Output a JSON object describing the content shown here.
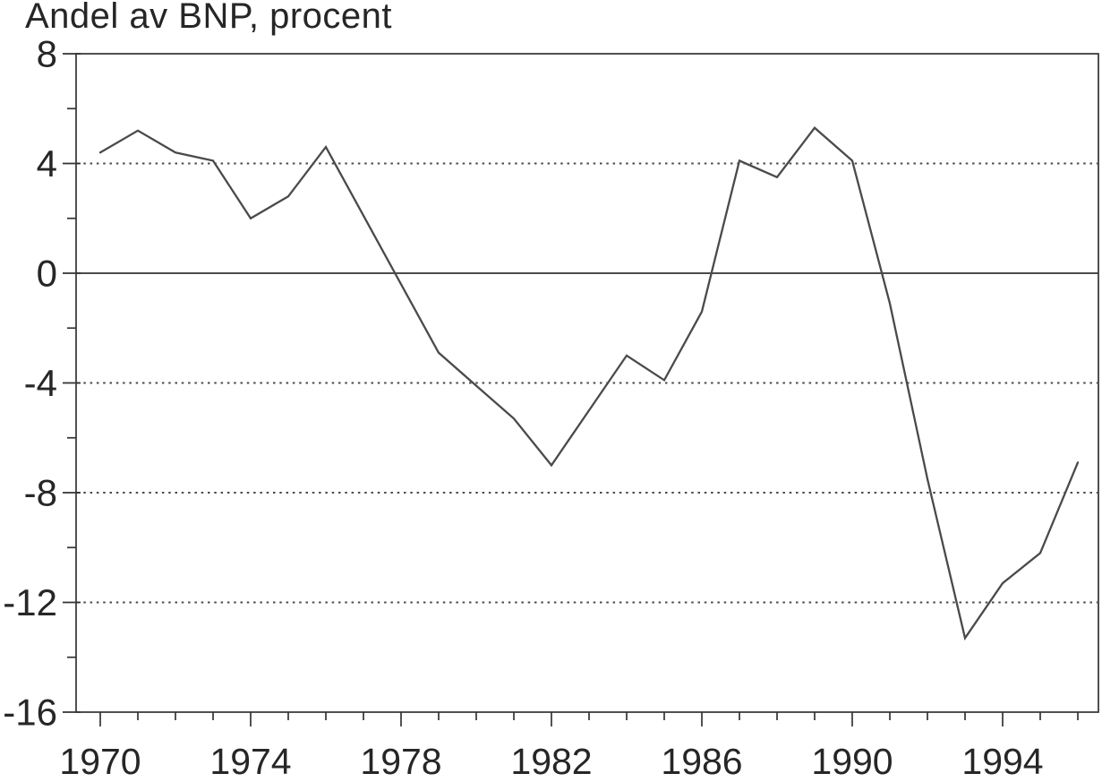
{
  "figure": {
    "background": "#ffffff"
  },
  "chart_data": {
    "type": "line",
    "title": "Andel av BNP, procent",
    "ylabel": "Andel av BNP, procent",
    "xlabel": "",
    "x": [
      1970,
      1971,
      1972,
      1973,
      1974,
      1975,
      1976,
      1977,
      1978,
      1979,
      1980,
      1981,
      1982,
      1983,
      1984,
      1985,
      1986,
      1987,
      1988,
      1989,
      1990,
      1991,
      1992,
      1993,
      1994,
      1995,
      1996
    ],
    "values": [
      4.4,
      5.2,
      4.4,
      4.1,
      2.0,
      2.8,
      4.6,
      2.1,
      -0.4,
      -2.9,
      -4.1,
      -5.3,
      -7.0,
      -5.0,
      -3.0,
      -3.9,
      -1.4,
      4.1,
      3.5,
      5.3,
      4.1,
      -1.1,
      -7.5,
      -13.3,
      -11.3,
      -10.2,
      -6.9
    ],
    "series_name": "Andel av BNP",
    "ylim": [
      -16,
      8
    ],
    "xlim_years": [
      1970,
      1996
    ],
    "yticks_major": [
      8,
      4,
      0,
      -4,
      -8,
      -12,
      -16
    ],
    "ytick_labels": [
      "8",
      "4",
      "0",
      "-4",
      "-8",
      "-12",
      "-16"
    ],
    "yticks_minor": [
      6,
      2,
      -2,
      -6,
      -10,
      -14
    ],
    "xticks_labeled": [
      1970,
      1974,
      1978,
      1982,
      1986,
      1990,
      1994
    ],
    "xtick_labels": [
      "1970",
      "1974",
      "1978",
      "1982",
      "1986",
      "1990",
      "1994"
    ],
    "xticks_minor_every_years": 1,
    "grid_dotted_at": [
      4,
      -4,
      -8,
      -12
    ],
    "zero_line_at": 0,
    "legend": "none",
    "colors": {
      "line": "#4a4a4a",
      "grid": "#4a4a4a",
      "axis": "#333333",
      "text": "#262626",
      "background": "#ffffff"
    }
  }
}
